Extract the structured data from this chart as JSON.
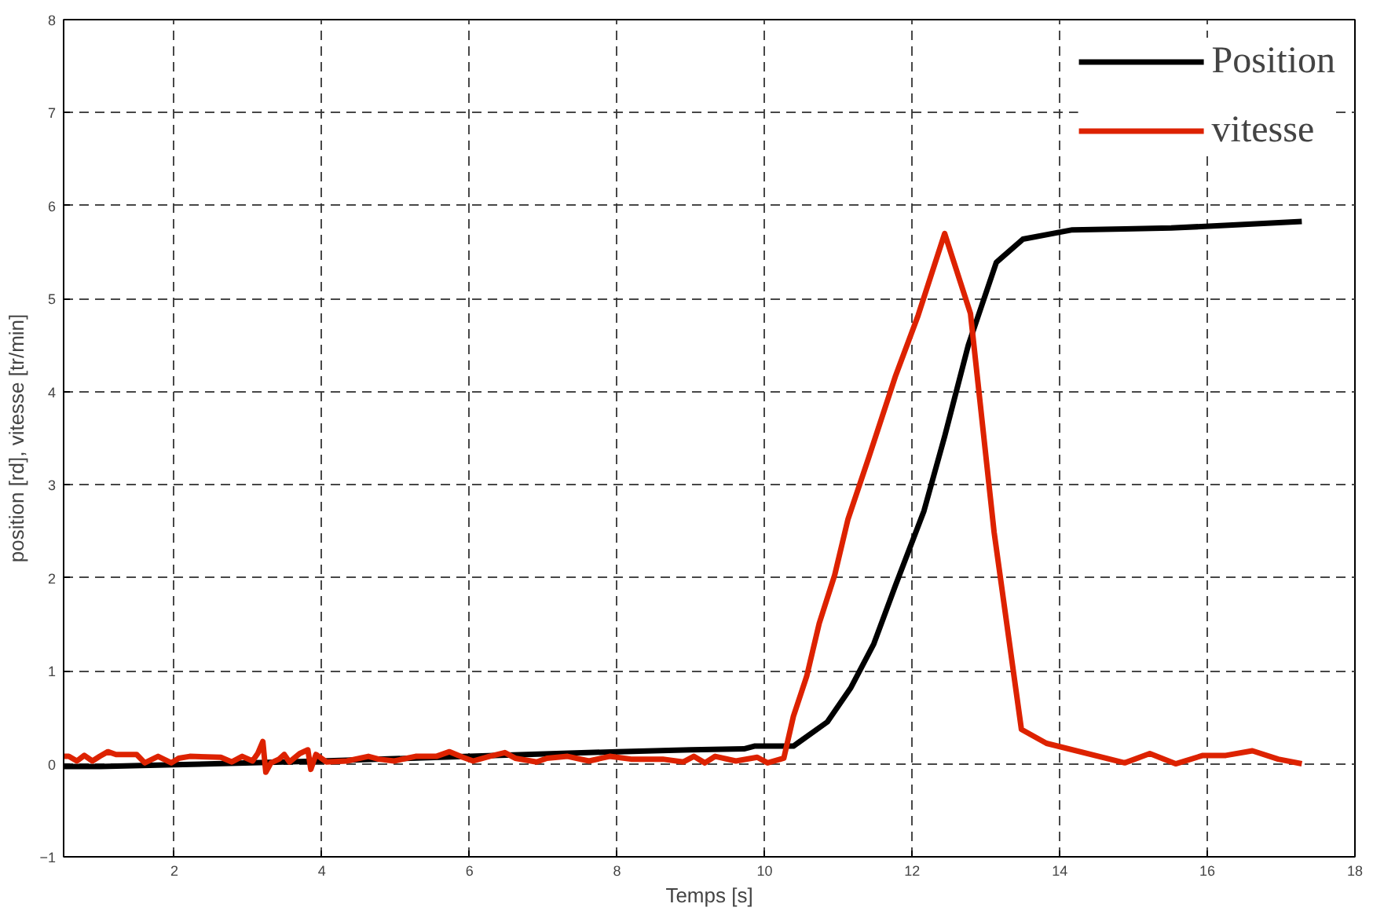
{
  "chart_data": {
    "type": "line",
    "xlabel": "Temps [s]",
    "ylabel": "position [rd], vitesse [tr/min]",
    "xlim": [
      0.5,
      18
    ],
    "ylim": [
      -1,
      8
    ],
    "xticks": [
      2,
      4,
      6,
      8,
      10,
      12,
      14,
      16,
      18
    ],
    "yticks": [
      -1,
      0,
      1,
      2,
      3,
      4,
      5,
      6,
      7,
      8
    ],
    "grid": true,
    "legend": "top right",
    "marker": "none",
    "line_style": "solid",
    "series": [
      {
        "name": "Position",
        "color": "#000000",
        "x": [
          0.5,
          1,
          2,
          4,
          6,
          8,
          9,
          9.72,
          9.86,
          10.39,
          10.85,
          11.17,
          11.48,
          11.77,
          12.16,
          12.44,
          12.76,
          13.14,
          13.5,
          14.17,
          14.88,
          15.51,
          16.29,
          17.28
        ],
        "values": [
          -0.03,
          -0.03,
          -0.01,
          0.03,
          0.08,
          0.13,
          0.15,
          0.16,
          0.19,
          0.19,
          0.45,
          0.82,
          1.29,
          1.91,
          2.72,
          3.52,
          4.5,
          5.39,
          5.64,
          5.74,
          5.75,
          5.76,
          5.79,
          5.83
        ]
      },
      {
        "name": "vitesse",
        "color": "#dd2200",
        "x": [
          0.5,
          0.57,
          0.68,
          0.78,
          0.89,
          0.99,
          1.1,
          1.21,
          1.49,
          1.6,
          1.78,
          1.96,
          2.06,
          2.21,
          2.63,
          2.78,
          2.92,
          3.06,
          3.13,
          3.2,
          3.24,
          3.31,
          3.42,
          3.49,
          3.56,
          3.7,
          3.81,
          3.85,
          3.92,
          4.06,
          4.34,
          4.63,
          4.77,
          4.98,
          5.27,
          5.55,
          5.73,
          5.91,
          6.05,
          6.27,
          6.48,
          6.62,
          6.91,
          7.05,
          7.33,
          7.62,
          7.9,
          8.19,
          8.62,
          8.9,
          9.04,
          9.19,
          9.33,
          9.61,
          9.9,
          10.04,
          10.26,
          10.39,
          10.57,
          10.74,
          10.95,
          11.13,
          11.41,
          11.77,
          12.08,
          12.44,
          12.79,
          13.11,
          13.48,
          13.82,
          14.88,
          15.22,
          15.57,
          15.94,
          16.25,
          16.61,
          16.96,
          17.28
        ],
        "values": [
          0.08,
          0.08,
          0.03,
          0.09,
          0.03,
          0.08,
          0.13,
          0.1,
          0.1,
          0.01,
          0.08,
          0.01,
          0.06,
          0.08,
          0.07,
          0.02,
          0.08,
          0.03,
          0.11,
          0.24,
          -0.09,
          0.01,
          0.05,
          0.1,
          0.02,
          0.11,
          0.15,
          -0.06,
          0.1,
          0.02,
          0.03,
          0.08,
          0.05,
          0.03,
          0.08,
          0.08,
          0.13,
          0.07,
          0.03,
          0.08,
          0.12,
          0.06,
          0.02,
          0.06,
          0.08,
          0.03,
          0.08,
          0.05,
          0.05,
          0.02,
          0.08,
          0.01,
          0.08,
          0.03,
          0.07,
          0.01,
          0.06,
          0.51,
          0.94,
          1.51,
          2.03,
          2.63,
          3.29,
          4.16,
          4.82,
          5.7,
          4.84,
          2.49,
          0.37,
          0.22,
          0.01,
          0.11,
          0.0,
          0.09,
          0.09,
          0.14,
          0.05,
          0.0
        ]
      }
    ]
  }
}
